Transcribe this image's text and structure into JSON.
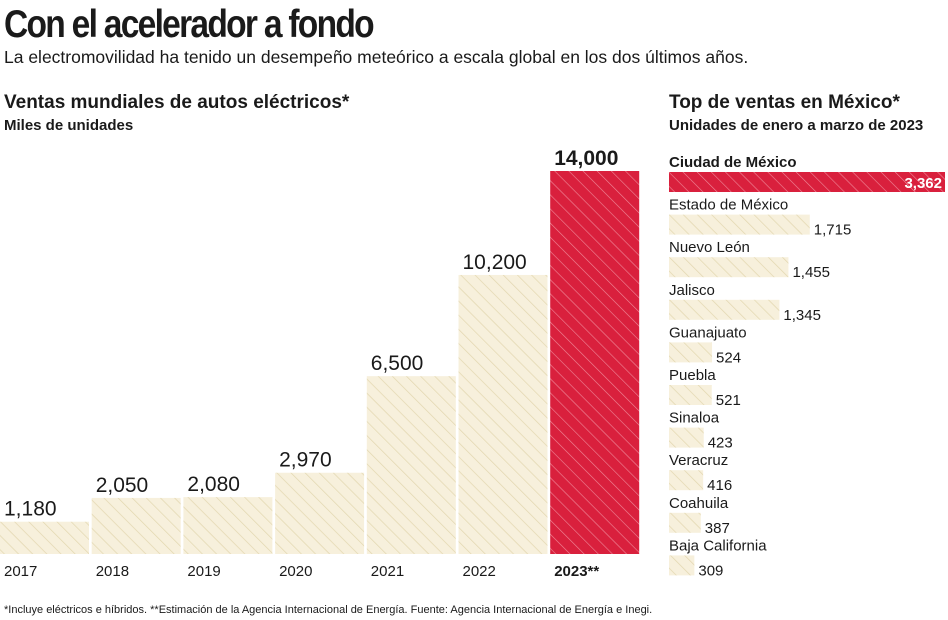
{
  "header": {
    "title": "Con el acelerador a fondo",
    "subtitle": "La electromovilidad ha tenido un desempeño meteórico a escala global en los dos últimos años."
  },
  "world_section": {
    "title": "Ventas mundiales de autos eléctricos*",
    "subtitle": "Miles de unidades"
  },
  "mexico_section": {
    "title": "Top de ventas en México*",
    "subtitle": "Unidades de enero a marzo de 2023"
  },
  "footnote": "*Incluye eléctricos e híbridos. **Estimación de la Agencia Internacional de Energía. Fuente: Agencia Internacional de Energía e Inegi.",
  "colors": {
    "bar_fill": "#f7f0dc",
    "bar_hatch": "#e2d6ae",
    "highlight": "#d9203d",
    "highlight_hatch": "#f08a9a",
    "text": "#1a1a1a"
  },
  "chart_data": [
    {
      "type": "bar",
      "title": "Ventas mundiales de autos eléctricos*",
      "ylabel": "Miles de unidades",
      "categories": [
        "2017",
        "2018",
        "2019",
        "2020",
        "2021",
        "2022",
        "2023**"
      ],
      "values": [
        1180,
        2050,
        2080,
        2970,
        6500,
        10200,
        14000
      ],
      "value_labels": [
        "1,180",
        "2,050",
        "2,080",
        "2,970",
        "6,500",
        "10,200",
        "14,000"
      ],
      "highlight_index": 6,
      "ylim": [
        0,
        14000
      ]
    },
    {
      "type": "bar",
      "orientation": "horizontal",
      "title": "Top de ventas en México*",
      "subtitle": "Unidades de enero a marzo de 2023",
      "categories": [
        "Ciudad de México",
        "Estado de México",
        "Nuevo León",
        "Jalisco",
        "Guanajuato",
        "Puebla",
        "Sinaloa",
        "Veracruz",
        "Coahuila",
        "Baja California"
      ],
      "values": [
        3362,
        1715,
        1455,
        1345,
        524,
        521,
        423,
        416,
        387,
        309
      ],
      "value_labels": [
        "3,362",
        "1,715",
        "1,455",
        "1,345",
        "524",
        "521",
        "423",
        "416",
        "387",
        "309"
      ],
      "highlight_index": 0,
      "xlim": [
        0,
        3362
      ]
    }
  ]
}
